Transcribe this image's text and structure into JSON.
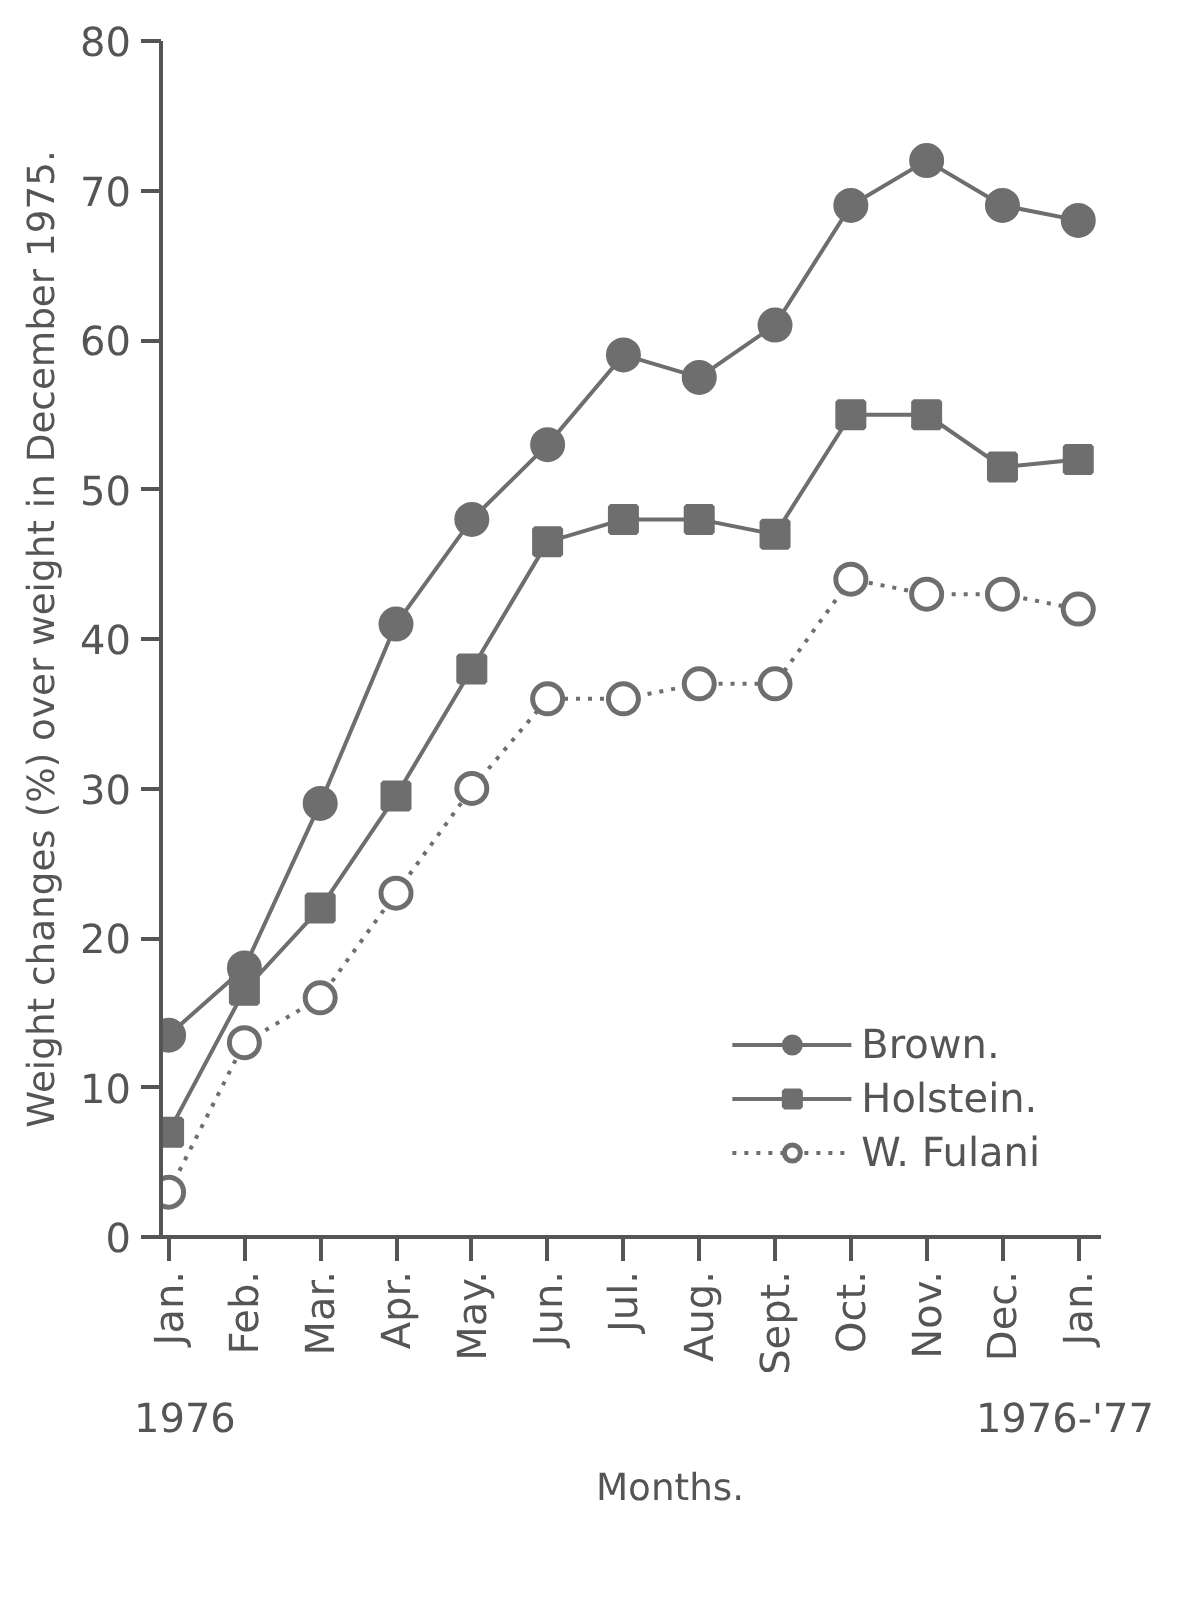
{
  "chart_data": {
    "type": "line",
    "xlabel": "Months.",
    "ylabel": "Weight changes (%) over weight in December 1975.",
    "categories": [
      "Jan.",
      "Feb.",
      "Mar.",
      "Apr.",
      "May.",
      "Jun.",
      "Jul.",
      "Aug.",
      "Sept.",
      "Oct.",
      "Nov.",
      "Dec.",
      "Jan."
    ],
    "series": [
      {
        "name": "Brown.",
        "color": "#6e6e6e",
        "marker": "circle",
        "line_style": "solid",
        "values": [
          13.5,
          18,
          29,
          41,
          48,
          53,
          59,
          57.5,
          61,
          69,
          72,
          69,
          68
        ]
      },
      {
        "name": "Holstein.",
        "color": "#6e6e6e",
        "marker": "square",
        "line_style": "solid",
        "values": [
          7,
          16.5,
          22,
          29.5,
          38,
          46.5,
          48,
          48,
          47,
          55,
          55,
          51.5,
          52
        ]
      },
      {
        "name": "W. Fulani",
        "color": "#6e6e6e",
        "marker": "circle",
        "line_style": "dotted",
        "values": [
          3,
          13,
          16,
          23,
          30,
          36,
          36,
          37,
          37,
          44,
          43,
          43,
          42
        ]
      }
    ],
    "ylim": [
      0,
      80
    ],
    "yticks": [
      0,
      10,
      20,
      30,
      40,
      50,
      60,
      70,
      80
    ],
    "grid": false,
    "legend": "bottom right",
    "annotations": [
      "1976",
      "1976-'77"
    ]
  }
}
